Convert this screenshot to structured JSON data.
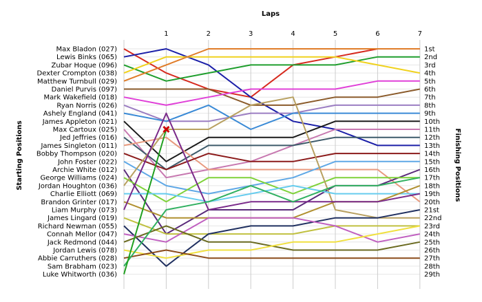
{
  "chart_data": {
    "type": "line",
    "title": "",
    "xlabel": "Laps",
    "ylabel_left": "Starting Positions",
    "ylabel_right": "Finishing Positions",
    "laps": [
      1,
      2,
      3,
      4,
      5,
      6,
      7
    ],
    "finishing_labels": [
      "1st",
      "2nd",
      "3rd",
      "4th",
      "5th",
      "6th",
      "7th",
      "8th",
      "9th",
      "10th",
      "11th",
      "12th",
      "13th",
      "14th",
      "15th",
      "16th",
      "17th",
      "18th",
      "19th",
      "20th",
      "21st",
      "22nd",
      "23rd",
      "24th",
      "25th",
      "26th",
      "27th",
      "28th",
      "29th"
    ],
    "drivers": [
      {
        "name": "Max Bladon (027)",
        "color": "#d62a1e",
        "positions": [
          1,
          4,
          6,
          7,
          3,
          2,
          1,
          1
        ]
      },
      {
        "name": "Lewis Binks (065)",
        "color": "#1b1fa8",
        "positions": [
          2,
          1,
          3,
          7,
          10,
          11,
          13,
          13
        ]
      },
      {
        "name": "Zubar Hoque (096)",
        "color": "#1f9e2d",
        "positions": [
          3,
          5,
          4,
          3,
          3,
          3,
          2,
          2
        ]
      },
      {
        "name": "Dexter Crompton (038)",
        "color": "#f0d21e",
        "positions": [
          4,
          2,
          2,
          2,
          2,
          2,
          3,
          4
        ]
      },
      {
        "name": "Matthew Turnbull (029)",
        "color": "#e07c28",
        "positions": [
          5,
          3,
          1,
          1,
          1,
          1,
          1,
          1
        ]
      },
      {
        "name": "Daniel Purvis (097)",
        "color": "#8a5a2a",
        "positions": [
          6,
          6,
          6,
          8,
          8,
          7,
          7,
          6
        ]
      },
      {
        "name": "Mark Wakefield (018)",
        "color": "#e040d8",
        "positions": [
          7,
          8,
          7,
          6,
          6,
          6,
          5,
          5
        ]
      },
      {
        "name": "Ryan Norris (026)",
        "color": "#9b7dc2",
        "positions": [
          8,
          10,
          10,
          9,
          9,
          8,
          8,
          8
        ]
      },
      {
        "name": "Ashely England (041)",
        "color": "#3a8ad6",
        "positions": [
          9,
          10,
          8,
          11,
          9,
          9,
          9,
          9
        ]
      },
      {
        "name": "James Appleton (021)",
        "color": "#1a1a1a",
        "positions": [
          10,
          15,
          12,
          12,
          12,
          10,
          10,
          10
        ]
      },
      {
        "name": "Max Cartoux (025)",
        "color": "#c778b0",
        "positions": [
          11,
          17,
          16,
          15,
          13,
          11,
          11,
          11
        ]
      },
      {
        "name": "Jed Jeffries (016)",
        "color": "#3d5a6a",
        "positions": [
          12,
          16,
          13,
          13,
          13,
          12,
          12,
          12
        ]
      },
      {
        "name": "James Singleton (011)",
        "color": "#e89a7e",
        "positions": [
          13,
          12,
          16,
          16,
          16,
          16,
          16,
          20
        ]
      },
      {
        "name": "Bobby Thompson (020)",
        "color": "#8b1a1a",
        "positions": [
          14,
          16,
          14,
          15,
          15,
          14,
          14,
          14
        ]
      },
      {
        "name": "John Foster (022)",
        "color": "#5fa8e6",
        "positions": [
          15,
          18,
          19,
          18,
          17,
          15,
          15,
          15
        ]
      },
      {
        "name": "Archie White (012)",
        "color": "#5a2a7a",
        "positions": [
          16,
          24,
          21,
          21,
          21,
          18,
          18,
          16
        ]
      },
      {
        "name": "George Williams (024)",
        "color": "#7fd23a",
        "positions": [
          17,
          20,
          17,
          17,
          19,
          17,
          17,
          17
        ]
      },
      {
        "name": "Jordan Houghton (036)",
        "color": "#b8a060",
        "positions": [
          18,
          11,
          11,
          8,
          7,
          21,
          22,
          22
        ]
      },
      {
        "name": "Charlie Elliott (069)",
        "color": "#66ccee",
        "positions": [
          19,
          19,
          20,
          19,
          18,
          19,
          19,
          19
        ]
      },
      {
        "name": "Brandon Grinter (017)",
        "color": "#b09030",
        "positions": [
          20,
          22,
          22,
          22,
          22,
          20,
          20,
          18
        ]
      },
      {
        "name": "Liam Murphy (073)",
        "color": "#7a2a8a",
        "positions": [
          21,
          9,
          21,
          20,
          20,
          20,
          20,
          19
        ]
      },
      {
        "name": "James Lingard (019)",
        "color": "#c0c040",
        "positions": [
          22,
          24,
          24,
          24,
          24,
          23,
          23,
          23
        ]
      },
      {
        "name": "Richard Newman (055)",
        "color": "#203060",
        "positions": [
          23,
          28,
          24,
          23,
          23,
          22,
          22,
          21
        ]
      },
      {
        "name": "Connah Mellor (047)",
        "color": "#c060c0",
        "positions": [
          24,
          25,
          22,
          22,
          22,
          23,
          25,
          24
        ]
      },
      {
        "name": "Jack Redmond (044)",
        "color": "#6a6a20",
        "positions": [
          25,
          23,
          25,
          25,
          26,
          26,
          26,
          25
        ]
      },
      {
        "name": "Jordan Lewis (078)",
        "color": "#f0e040",
        "positions": [
          26,
          27,
          26,
          26,
          25,
          25,
          24,
          23
        ]
      },
      {
        "name": "Abbie Carruthers (028)",
        "color": "#8a4a1a",
        "positions": [
          27,
          26,
          27,
          27,
          27,
          27,
          27,
          27
        ]
      },
      {
        "name": "Sam Brabham (023)",
        "color": "#30b060",
        "positions": [
          28,
          21,
          20,
          18,
          20,
          18,
          18,
          17
        ]
      },
      {
        "name": "Luke Whitworth (036)",
        "color": "#20a020",
        "positions": [
          29,
          11,
          0,
          0,
          0,
          0,
          0,
          0
        ],
        "retired_lap": 1
      }
    ],
    "retired_marker": {
      "lap": 1,
      "position": 11,
      "color": "#cc0000"
    },
    "grid": true
  }
}
